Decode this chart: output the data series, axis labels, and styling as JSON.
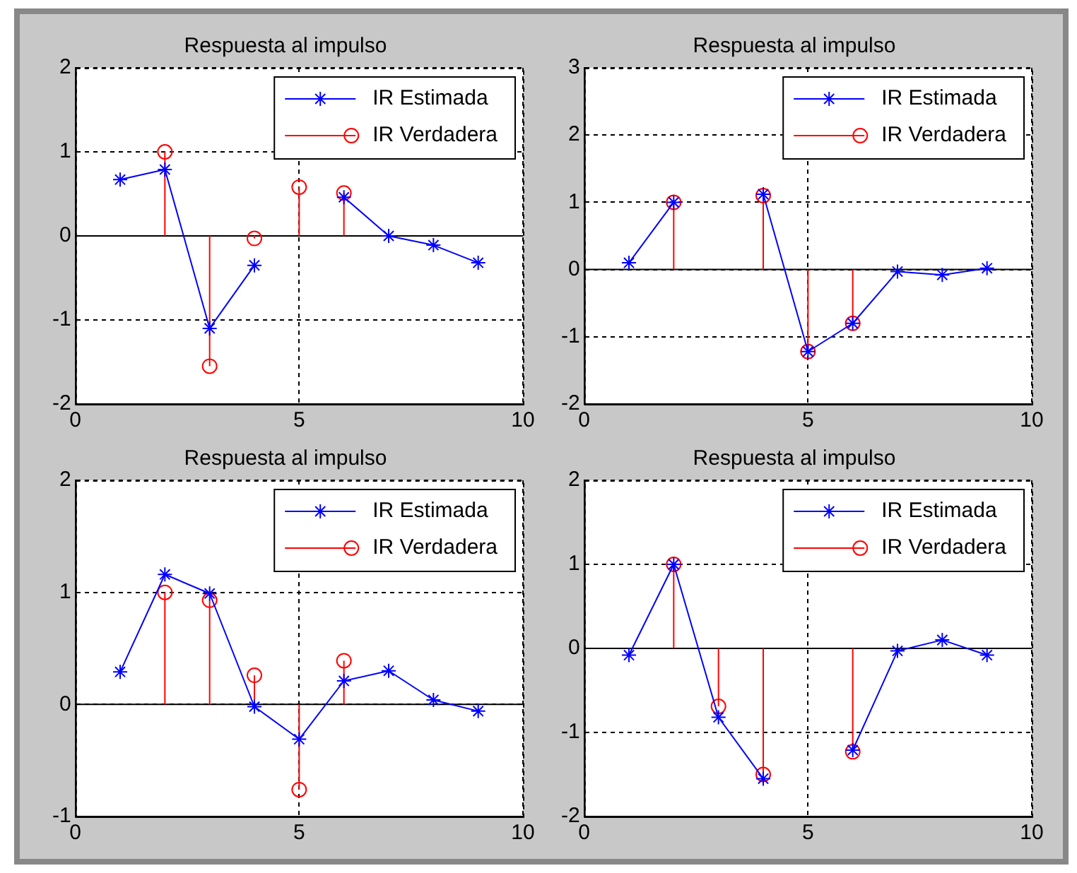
{
  "chart_data": [
    {
      "type": "line",
      "title": "Respuesta al impulso",
      "xlim": [
        0,
        10
      ],
      "xticks": [
        0,
        5,
        10
      ],
      "ylim": [
        -2,
        2
      ],
      "yticks": [
        -2,
        -1,
        0,
        1,
        2
      ],
      "grid": true,
      "legend": "top right",
      "series": [
        {
          "name": "IR Estimada",
          "type": "line",
          "color": "#0000ff",
          "marker": "cross",
          "x": [
            1,
            2,
            3,
            4,
            5,
            6,
            7,
            8,
            9
          ],
          "values": [
            0.67,
            0.79,
            -1.1,
            -0.35,
            null,
            0.46,
            0,
            -0.11,
            -0.32
          ]
        },
        {
          "name": "IR Verdadera",
          "type": "lollipop",
          "color": "#ff0000",
          "marker": "circle",
          "x": [
            2,
            3,
            4,
            5,
            6
          ],
          "values": [
            1.0,
            -1.55,
            -0.03,
            0.58,
            0.51
          ]
        }
      ]
    },
    {
      "type": "line",
      "title": "Respuesta al impulso",
      "xlim": [
        0,
        10
      ],
      "xticks": [
        0,
        5,
        10
      ],
      "ylim": [
        -2,
        3
      ],
      "yticks": [
        -2,
        -1,
        0,
        1,
        2,
        3
      ],
      "grid": true,
      "legend": "top right",
      "series": [
        {
          "name": "IR Estimada",
          "type": "line",
          "color": "#0000ff",
          "marker": "cross",
          "x": [
            1,
            2,
            3,
            4,
            5,
            6,
            7,
            8,
            9
          ],
          "values": [
            0.1,
            1.0,
            null,
            1.12,
            -1.22,
            -0.8,
            -0.03,
            -0.08,
            0.02
          ]
        },
        {
          "name": "IR Verdadera",
          "type": "lollipop",
          "color": "#ff0000",
          "marker": "circle",
          "x": [
            2,
            3,
            4,
            5,
            6
          ],
          "values": [
            1.0,
            null,
            1.1,
            -1.22,
            -0.8
          ]
        }
      ]
    },
    {
      "type": "line",
      "title": "Respuesta al impulso",
      "xlim": [
        0,
        10
      ],
      "xticks": [
        0,
        5,
        10
      ],
      "ylim": [
        -1,
        2
      ],
      "yticks": [
        -1,
        0,
        1,
        2
      ],
      "grid": true,
      "legend": "top right",
      "series": [
        {
          "name": "IR Estimada",
          "type": "line",
          "color": "#0000ff",
          "marker": "cross",
          "x": [
            1,
            2,
            3,
            4,
            5,
            6,
            7,
            8,
            9
          ],
          "values": [
            0.29,
            1.16,
            0.99,
            -0.02,
            -0.31,
            0.21,
            0.3,
            0.04,
            -0.06
          ]
        },
        {
          "name": "IR Verdadera",
          "type": "lollipop",
          "color": "#ff0000",
          "marker": "circle",
          "x": [
            2,
            3,
            4,
            5,
            6
          ],
          "values": [
            1.0,
            0.93,
            0.26,
            -0.76,
            0.39
          ]
        }
      ]
    },
    {
      "type": "line",
      "title": "Respuesta al impulso",
      "xlim": [
        0,
        10
      ],
      "xticks": [
        0,
        5,
        10
      ],
      "ylim": [
        -2,
        2
      ],
      "yticks": [
        -2,
        -1,
        0,
        1,
        2
      ],
      "grid": true,
      "legend": "top right",
      "series": [
        {
          "name": "IR Estimada",
          "type": "line",
          "color": "#0000ff",
          "marker": "cross",
          "x": [
            1,
            2,
            3,
            4,
            5,
            6,
            7,
            8,
            9
          ],
          "values": [
            -0.08,
            1.0,
            -0.82,
            -1.55,
            null,
            -1.21,
            -0.03,
            0.1,
            -0.08
          ]
        },
        {
          "name": "IR Verdadera",
          "type": "lollipop",
          "color": "#ff0000",
          "marker": "circle",
          "x": [
            2,
            3,
            4,
            5,
            6
          ],
          "values": [
            1.0,
            -0.69,
            -1.5,
            null,
            -1.23
          ]
        }
      ]
    }
  ]
}
